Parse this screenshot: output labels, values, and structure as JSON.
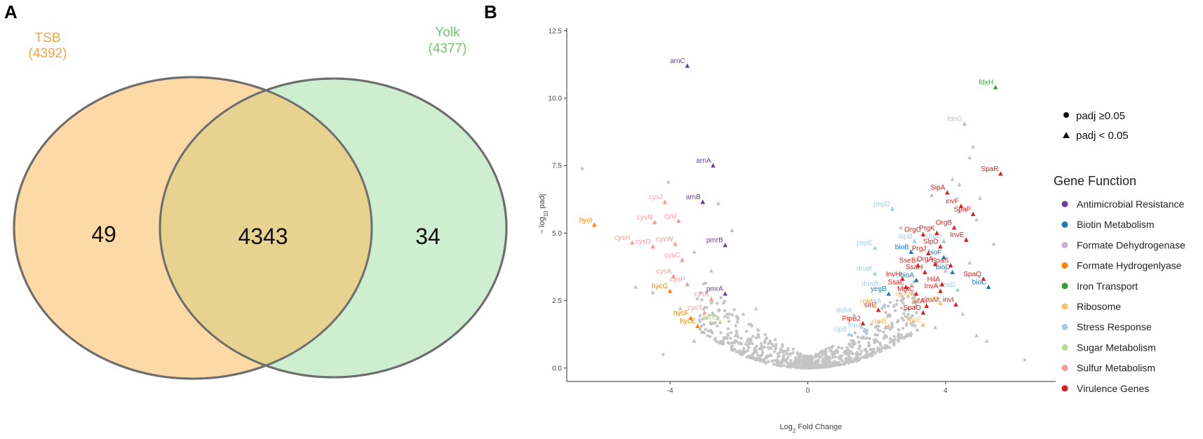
{
  "panel_a": {
    "letter": "A",
    "sets": [
      {
        "name": "TSB",
        "count_label": "(4392)",
        "color": "#F6A43F",
        "fill": "#FDD9A6"
      },
      {
        "name": "Yolk",
        "count_label": "(4377)",
        "color": "#72C66F",
        "fill": "#CDEFD0"
      }
    ],
    "regions": {
      "tsb_only": "49",
      "shared": "4343",
      "yolk_only": "34"
    },
    "overlap_fill": "#E8D28F"
  },
  "panel_b": {
    "letter": "B",
    "chart_data": {
      "type": "scatter",
      "xlabel_main": "Log",
      "xlabel_sub": "2",
      "xlabel_rest": " Fold Change",
      "ylabel_main": "− log",
      "ylabel_sub": "10",
      "ylabel_rest": " padj",
      "xlim": [
        -7,
        7.2
      ],
      "ylim": [
        -0.5,
        12.6
      ],
      "x_ticks": [
        -4,
        0,
        4
      ],
      "x_tick_labels": [
        "-4",
        "0",
        "4"
      ],
      "y_ticks": [
        0,
        2.5,
        5,
        7.5,
        10,
        12.5
      ],
      "y_tick_labels": [
        "0.0",
        "2.5",
        "5.0",
        "7.5",
        "10.0",
        "12.5"
      ],
      "shape_legend": [
        {
          "shape": "circle",
          "label": "padj  ≥0.05"
        },
        {
          "shape": "triangle",
          "label": "padj < 0.05"
        }
      ],
      "legend_title": "Gene Function",
      "categories": [
        {
          "name": "Antimicrobial Resistance",
          "color": "#6A3D9A"
        },
        {
          "name": "Biotin Metabolism",
          "color": "#1F78B4"
        },
        {
          "name": "Formate Dehydrogenase",
          "color": "#CAB2D6"
        },
        {
          "name": "Formate Hydrogenlyase",
          "color": "#FF7F00"
        },
        {
          "name": "Iron Transport",
          "color": "#33A02C"
        },
        {
          "name": "Ribosome",
          "color": "#FDBF6F"
        },
        {
          "name": "Stress Response",
          "color": "#A6CEE3"
        },
        {
          "name": "Sugar Metabolism",
          "color": "#B2DF8A"
        },
        {
          "name": "Sulfur Metabolism",
          "color": "#FB9A99"
        },
        {
          "name": "Virulence Genes",
          "color": "#E31A1C"
        }
      ],
      "labeled_points": [
        {
          "gene": "arnC",
          "x": -3.5,
          "y": 11.2,
          "cat": 0
        },
        {
          "gene": "arnA",
          "x": -2.75,
          "y": 7.5,
          "cat": 0
        },
        {
          "gene": "arnB",
          "x": -3.05,
          "y": 6.15,
          "cat": 0
        },
        {
          "gene": "pmrB",
          "x": -2.4,
          "y": 4.55,
          "cat": 0
        },
        {
          "gene": "pmrA",
          "x": -2.4,
          "y": 2.75,
          "cat": 0
        },
        {
          "gene": "fdxH",
          "x": 5.45,
          "y": 10.4,
          "cat": 4
        },
        {
          "gene": "fdnG",
          "x": 4.55,
          "y": 9.05,
          "cat": 2
        },
        {
          "gene": "hycI",
          "x": -6.2,
          "y": 5.3,
          "cat": 3
        },
        {
          "gene": "hycG",
          "x": -4.0,
          "y": 2.85,
          "cat": 3
        },
        {
          "gene": "hycF",
          "x": -3.4,
          "y": 1.85,
          "cat": 3
        },
        {
          "gene": "hycE",
          "x": -3.2,
          "y": 1.55,
          "cat": 3
        },
        {
          "gene": "cysJ",
          "x": -4.15,
          "y": 6.15,
          "cat": 8
        },
        {
          "gene": "cysN",
          "x": -4.45,
          "y": 5.4,
          "cat": 8
        },
        {
          "gene": "cysI",
          "x": -3.75,
          "y": 5.45,
          "cat": 8
        },
        {
          "gene": "cysH",
          "x": -5.1,
          "y": 4.65,
          "cat": 8
        },
        {
          "gene": "cysD",
          "x": -4.5,
          "y": 4.5,
          "cat": 8
        },
        {
          "gene": "cysW",
          "x": -3.85,
          "y": 4.6,
          "cat": 8
        },
        {
          "gene": "cysC",
          "x": -3.65,
          "y": 4.0,
          "cat": 8
        },
        {
          "gene": "cysA",
          "x": -3.9,
          "y": 3.4,
          "cat": 8
        },
        {
          "gene": "cysP",
          "x": -3.5,
          "y": 3.1,
          "cat": 8
        },
        {
          "gene": "cysK",
          "x": -2.8,
          "y": 2.55,
          "cat": 8
        },
        {
          "gene": "cysT",
          "x": -3.0,
          "y": 2.05,
          "cat": 8
        },
        {
          "gene": "asnB",
          "x": -2.55,
          "y": 1.7,
          "cat": 7
        },
        {
          "gene": "pspD",
          "x": 2.45,
          "y": 5.9,
          "cat": 6
        },
        {
          "gene": "pspE",
          "x": 1.95,
          "y": 4.45,
          "cat": 6
        },
        {
          "gene": "ibpB",
          "x": 3.1,
          "y": 4.7,
          "cat": 6
        },
        {
          "gene": "dnaK",
          "x": 1.95,
          "y": 3.5,
          "cat": 6
        },
        {
          "gene": "deaD",
          "x": 4.35,
          "y": 2.9,
          "cat": 6
        },
        {
          "gene": "dnaJ",
          "x": 3.95,
          "y": 4.7,
          "cat": 6
        },
        {
          "gene": "bioB",
          "x": 3.0,
          "y": 4.3,
          "cat": 1
        },
        {
          "gene": "bioF",
          "x": 3.95,
          "y": 4.1,
          "cat": 1
        },
        {
          "gene": "bioD",
          "x": 4.2,
          "y": 3.55,
          "cat": 1
        },
        {
          "gene": "bioA",
          "x": 3.15,
          "y": 3.25,
          "cat": 1
        },
        {
          "gene": "bioC",
          "x": 5.25,
          "y": 3.0,
          "cat": 1
        },
        {
          "gene": "SipA",
          "x": 4.05,
          "y": 6.5,
          "cat": 9
        },
        {
          "gene": "invF",
          "x": 4.45,
          "y": 6.0,
          "cat": 9
        },
        {
          "gene": "SpaP",
          "x": 4.8,
          "y": 5.7,
          "cat": 9
        },
        {
          "gene": "SpaR",
          "x": 5.6,
          "y": 7.2,
          "cat": 9
        },
        {
          "gene": "OrgB",
          "x": 4.25,
          "y": 5.2,
          "cat": 9
        },
        {
          "gene": "InvE",
          "x": 4.6,
          "y": 4.75,
          "cat": 9
        },
        {
          "gene": "OrgC",
          "x": 3.35,
          "y": 4.95,
          "cat": 9
        },
        {
          "gene": "PrgK",
          "x": 3.75,
          "y": 5.0,
          "cat": 9
        },
        {
          "gene": "SlpD",
          "x": 3.85,
          "y": 4.5,
          "cat": 9
        },
        {
          "gene": "PrgJ",
          "x": 3.5,
          "y": 4.25,
          "cat": 9
        },
        {
          "gene": "SpaS",
          "x": 4.15,
          "y": 3.8,
          "cat": 9
        },
        {
          "gene": "SseB",
          "x": 3.2,
          "y": 3.8,
          "cat": 9
        },
        {
          "gene": "OrgA",
          "x": 3.7,
          "y": 3.85,
          "cat": 9
        },
        {
          "gene": "SsaH",
          "x": 3.4,
          "y": 3.55,
          "cat": 9
        },
        {
          "gene": "InvH",
          "x": 2.75,
          "y": 3.3,
          "cat": 9
        },
        {
          "gene": "SpaQ",
          "x": 5.1,
          "y": 3.3,
          "cat": 9
        },
        {
          "gene": "HilA",
          "x": 3.9,
          "y": 3.1,
          "cat": 9
        },
        {
          "gene": "InvA",
          "x": 3.85,
          "y": 2.85,
          "cat": 9
        },
        {
          "gene": "SsaL",
          "x": 2.85,
          "y": 3.0,
          "cat": 9
        },
        {
          "gene": "yegB",
          "x": 2.35,
          "y": 2.75,
          "cat": 1
        },
        {
          "gene": "MgtC",
          "x": 3.15,
          "y": 2.75,
          "cat": 9
        },
        {
          "gene": "spaM; invI",
          "x": 4.3,
          "y": 2.35,
          "cat": 9
        },
        {
          "gene": "slrP",
          "x": 2.05,
          "y": 2.15,
          "cat": 9
        },
        {
          "gene": "SpaO",
          "x": 3.35,
          "y": 2.05,
          "cat": 9
        },
        {
          "gene": "PipB2",
          "x": 1.6,
          "y": 1.65,
          "cat": 9
        },
        {
          "gene": "sifA",
          "x": 3.45,
          "y": 2.3,
          "cat": 9
        },
        {
          "gene": "dsbA",
          "x": 1.35,
          "y": 1.95,
          "cat": 6
        },
        {
          "gene": "clpB",
          "x": 1.2,
          "y": 1.25,
          "cat": 6
        },
        {
          "gene": "moaA",
          "x": 2.2,
          "y": 2.3,
          "cat": 6
        },
        {
          "gene": "dnaB",
          "x": 2.1,
          "y": 2.95,
          "cat": 6
        },
        {
          "gene": "fhuA",
          "x": 1.65,
          "y": 1.4,
          "cat": 6
        },
        {
          "gene": "rpsA",
          "x": 3.85,
          "y": 2.4,
          "cat": 5
        },
        {
          "gene": "rplA",
          "x": 1.95,
          "y": 2.3,
          "cat": 5
        },
        {
          "gene": "rpsB",
          "x": 2.35,
          "y": 1.55,
          "cat": 5
        },
        {
          "gene": "rpsE",
          "x": 3.35,
          "y": 1.6,
          "cat": 5
        },
        {
          "gene": "rpmA",
          "x": 3.1,
          "y": 2.55,
          "cat": 5
        }
      ],
      "grey_points_note": "non-labeled genes shown as grey circles/triangles"
    }
  }
}
